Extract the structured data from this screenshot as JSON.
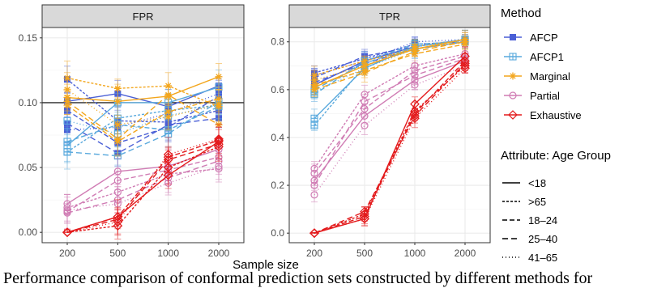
{
  "chart_data": {
    "type": "line",
    "x_title": "Sample size",
    "x_ticks": [
      200,
      500,
      1000,
      2000
    ],
    "panels": [
      {
        "title": "FPR",
        "ylim": [
          -0.008,
          0.158
        ],
        "y_ticks": [
          "0.00",
          "0.05",
          "0.10",
          "0.15"
        ],
        "reference_line": 0.1,
        "series": [
          {
            "method": "AFCP",
            "group": "<18",
            "values": [
              0.101,
              0.107,
              0.097,
              0.113
            ]
          },
          {
            "method": "AFCP",
            "group": ">65",
            "values": [
              0.118,
              0.086,
              0.085,
              0.094
            ]
          },
          {
            "method": "AFCP",
            "group": "18-24",
            "values": [
              0.094,
              0.069,
              0.081,
              0.105
            ]
          },
          {
            "method": "AFCP",
            "group": "25-40",
            "values": [
              0.084,
              0.061,
              0.083,
              0.088
            ]
          },
          {
            "method": "AFCP",
            "group": "41-65",
            "values": [
              0.079,
              0.081,
              0.092,
              0.107
            ]
          },
          {
            "method": "AFCP1",
            "group": "<18",
            "values": [
              0.067,
              0.1,
              0.1,
              0.112
            ]
          },
          {
            "method": "AFCP1",
            "group": ">65",
            "values": [
              0.062,
              0.088,
              0.094,
              0.098
            ]
          },
          {
            "method": "AFCP1",
            "group": "18-24",
            "values": [
              0.07,
              0.083,
              0.079,
              0.097
            ]
          },
          {
            "method": "AFCP1",
            "group": "25-40",
            "values": [
              0.062,
              0.059,
              0.076,
              0.101
            ]
          },
          {
            "method": "AFCP1",
            "group": "41-65",
            "values": [
              0.086,
              0.076,
              0.09,
              0.098
            ]
          },
          {
            "method": "Marginal",
            "group": "<18",
            "values": [
              0.104,
              0.101,
              0.105,
              0.12
            ]
          },
          {
            "method": "Marginal",
            "group": ">65",
            "values": [
              0.119,
              0.111,
              0.113,
              0.097
            ]
          },
          {
            "method": "Marginal",
            "group": "18-24",
            "values": [
              0.098,
              0.07,
              0.093,
              0.103
            ]
          },
          {
            "method": "Marginal",
            "group": "25-40",
            "values": [
              0.101,
              0.072,
              0.106,
              0.083
            ]
          },
          {
            "method": "Marginal",
            "group": "41-65",
            "values": [
              0.11,
              0.083,
              0.089,
              0.099
            ]
          },
          {
            "method": "Partial",
            "group": "<18",
            "values": [
              0.022,
              0.047,
              0.051,
              0.064
            ]
          },
          {
            "method": "Partial",
            "group": ">65",
            "values": [
              0.019,
              0.031,
              0.045,
              0.049
            ]
          },
          {
            "method": "Partial",
            "group": "18-24",
            "values": [
              0.016,
              0.04,
              0.048,
              0.058
            ]
          },
          {
            "method": "Partial",
            "group": "25-40",
            "values": [
              0.015,
              0.025,
              0.042,
              0.055
            ]
          },
          {
            "method": "Partial",
            "group": "41-65",
            "values": [
              0.017,
              0.022,
              0.038,
              0.051
            ]
          },
          {
            "method": "Exhaustive",
            "group": "<18",
            "values": [
              0.0,
              0.012,
              0.044,
              0.07
            ]
          },
          {
            "method": "Exhaustive",
            "group": ">65",
            "values": [
              0.0,
              0.005,
              0.05,
              0.066
            ]
          },
          {
            "method": "Exhaustive",
            "group": "18-24",
            "values": [
              0.0,
              0.012,
              0.058,
              0.071
            ]
          },
          {
            "method": "Exhaustive",
            "group": "25-40",
            "values": [
              0.0,
              0.01,
              0.056,
              0.068
            ]
          },
          {
            "method": "Exhaustive",
            "group": "41-65",
            "values": [
              0.0,
              0.008,
              0.06,
              0.072
            ]
          }
        ]
      },
      {
        "title": "TPR",
        "ylim": [
          -0.04,
          0.86
        ],
        "y_ticks": [
          "0.0",
          "0.2",
          "0.4",
          "0.6",
          "0.8"
        ],
        "reference_line": null,
        "series": [
          {
            "method": "AFCP",
            "group": "<18",
            "values": [
              0.62,
              0.72,
              0.78,
              0.81
            ]
          },
          {
            "method": "AFCP",
            "group": ">65",
            "values": [
              0.67,
              0.73,
              0.79,
              0.8
            ]
          },
          {
            "method": "AFCP",
            "group": "18-24",
            "values": [
              0.65,
              0.74,
              0.78,
              0.81
            ]
          },
          {
            "method": "AFCP",
            "group": "25-40",
            "values": [
              0.63,
              0.71,
              0.77,
              0.8
            ]
          },
          {
            "method": "AFCP",
            "group": "41-65",
            "values": [
              0.66,
              0.72,
              0.8,
              0.81
            ]
          },
          {
            "method": "AFCP1",
            "group": "<18",
            "values": [
              0.48,
              0.69,
              0.78,
              0.81
            ]
          },
          {
            "method": "AFCP1",
            "group": ">65",
            "values": [
              0.45,
              0.7,
              0.77,
              0.8
            ]
          },
          {
            "method": "AFCP1",
            "group": "18-24",
            "values": [
              0.58,
              0.72,
              0.79,
              0.8
            ]
          },
          {
            "method": "AFCP1",
            "group": "25-40",
            "values": [
              0.6,
              0.71,
              0.78,
              0.81
            ]
          },
          {
            "method": "AFCP1",
            "group": "41-65",
            "values": [
              0.59,
              0.69,
              0.77,
              0.8
            ]
          },
          {
            "method": "Marginal",
            "group": "<18",
            "values": [
              0.61,
              0.7,
              0.77,
              0.81
            ]
          },
          {
            "method": "Marginal",
            "group": ">65",
            "values": [
              0.66,
              0.72,
              0.77,
              0.8
            ]
          },
          {
            "method": "Marginal",
            "group": "18-24",
            "values": [
              0.62,
              0.68,
              0.75,
              0.79
            ]
          },
          {
            "method": "Marginal",
            "group": "25-40",
            "values": [
              0.6,
              0.67,
              0.76,
              0.8
            ]
          },
          {
            "method": "Marginal",
            "group": "41-65",
            "values": [
              0.64,
              0.7,
              0.78,
              0.81
            ]
          },
          {
            "method": "Partial",
            "group": "<18",
            "values": [
              0.22,
              0.49,
              0.64,
              0.72
            ]
          },
          {
            "method": "Partial",
            "group": ">65",
            "values": [
              0.27,
              0.58,
              0.7,
              0.75
            ]
          },
          {
            "method": "Partial",
            "group": "18-24",
            "values": [
              0.25,
              0.52,
              0.68,
              0.74
            ]
          },
          {
            "method": "Partial",
            "group": "25-40",
            "values": [
              0.2,
              0.55,
              0.66,
              0.73
            ]
          },
          {
            "method": "Partial",
            "group": "41-65",
            "values": [
              0.16,
              0.45,
              0.62,
              0.7
            ]
          },
          {
            "method": "Exhaustive",
            "group": "<18",
            "values": [
              0.0,
              0.06,
              0.54,
              0.74
            ]
          },
          {
            "method": "Exhaustive",
            "group": ">65",
            "values": [
              0.0,
              0.08,
              0.51,
              0.7
            ]
          },
          {
            "method": "Exhaustive",
            "group": "18-24",
            "values": [
              0.0,
              0.07,
              0.5,
              0.72
            ]
          },
          {
            "method": "Exhaustive",
            "group": "25-40",
            "values": [
              0.0,
              0.09,
              0.49,
              0.71
            ]
          },
          {
            "method": "Exhaustive",
            "group": "41-65",
            "values": [
              0.0,
              0.06,
              0.48,
              0.69
            ]
          }
        ]
      }
    ],
    "methods": [
      {
        "name": "AFCP",
        "color": "#4a5fd6",
        "marker": "square"
      },
      {
        "name": "AFCP1",
        "color": "#59a9dd",
        "marker": "square-cross"
      },
      {
        "name": "Marginal",
        "color": "#f3a61d",
        "marker": "asterisk"
      },
      {
        "name": "Partial",
        "color": "#d07cb4",
        "marker": "circle"
      },
      {
        "name": "Exhaustive",
        "color": "#e31a1c",
        "marker": "diamond"
      }
    ],
    "groups": [
      {
        "name": "<18",
        "dash": "none"
      },
      {
        "name": ">65",
        "dash": "3 2"
      },
      {
        "name": "18–24",
        "dash": "6 3"
      },
      {
        "name": "25–40",
        "dash": "7 4"
      },
      {
        "name": "41–65",
        "dash": "1 3"
      }
    ],
    "legend_method_title": "Method",
    "legend_group_title": "Attribute: Age Group",
    "legend_placement": "right",
    "grid": true,
    "error_bar_halfwidth": {
      "FPR": 0.012,
      "TPR": 0.035
    }
  },
  "caption": "Performance comparison of conformal prediction sets constructed by different methods for"
}
